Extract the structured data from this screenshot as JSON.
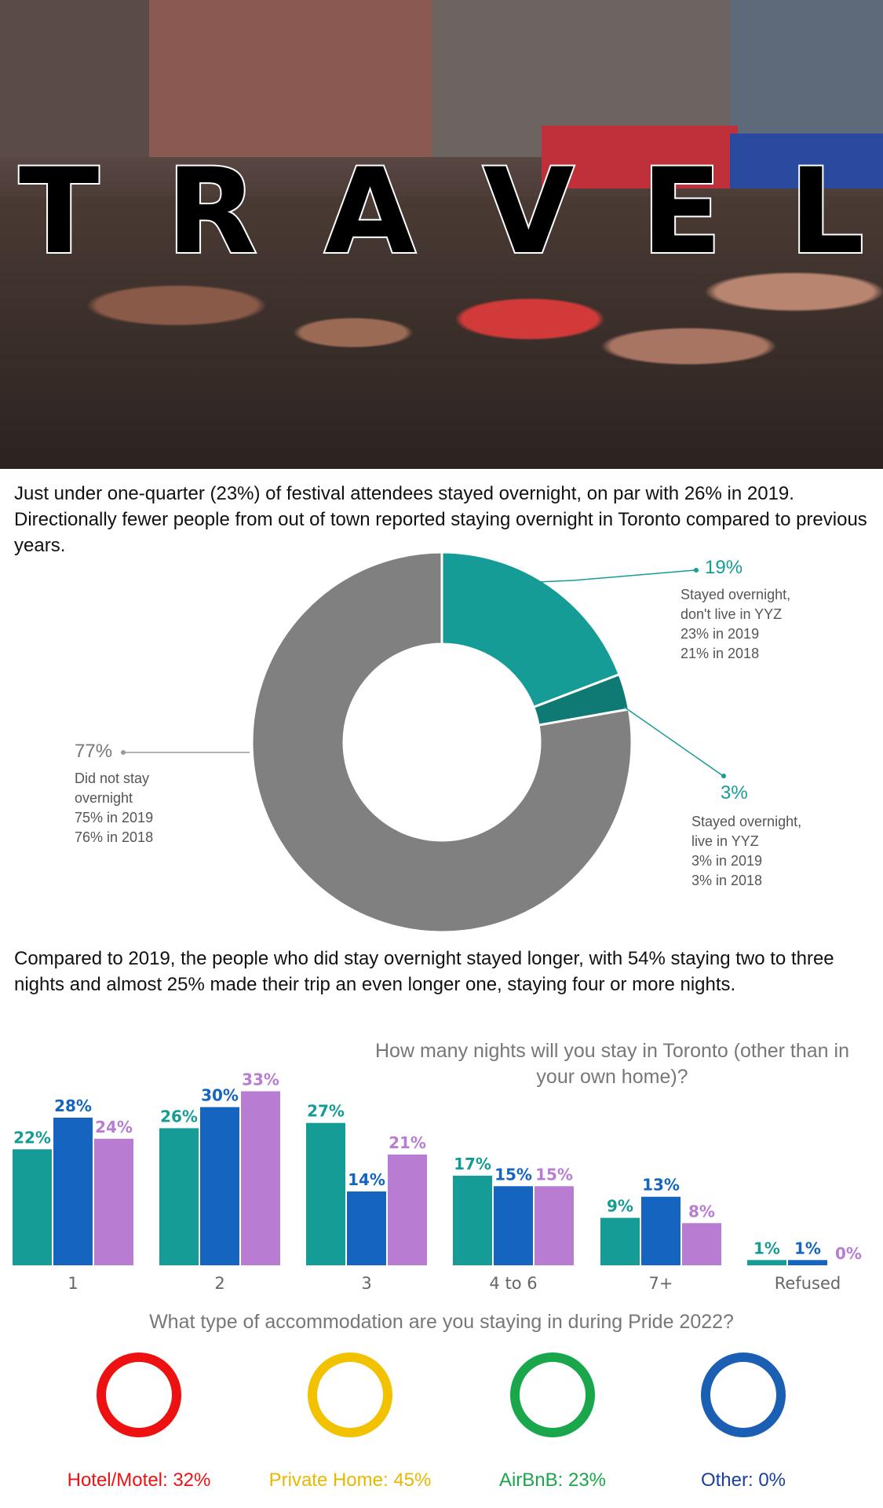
{
  "hero": {
    "title": "TRAVEL",
    "letters": [
      "T",
      "R",
      "A",
      "V",
      "E",
      "L"
    ]
  },
  "intro_text": "Just under one-quarter (23%) of festival attendees stayed overnight, on par with 26% in 2019. Directionally fewer people from out of town reported staying overnight in Toronto compared to previous years.",
  "colors": {
    "teal": "#169c96",
    "dark_teal": "#0f7a74",
    "gray": "#808080",
    "blue": "#1565c0",
    "purple": "#b87dd3",
    "red": "#ee1111",
    "yellow": "#f2c200",
    "green": "#1aa64a",
    "navy_blue": "#1a5fb4"
  },
  "donut": {
    "segments": [
      {
        "pct": "19%",
        "value": 19,
        "lines": [
          "Stayed overnight,",
          "don't live in YYZ",
          "23% in 2019",
          "21% in 2018"
        ],
        "color": "#169c96"
      },
      {
        "pct": "3%",
        "value": 3,
        "lines": [
          "Stayed overnight,",
          "live in YYZ",
          "3% in 2019",
          "3% in 2018"
        ],
        "color": "#0f7a74"
      },
      {
        "pct": "77%",
        "value": 77,
        "lines": [
          "Did not stay",
          "overnight",
          "75% in 2019",
          "76% in 2018"
        ],
        "color": "#808080"
      }
    ]
  },
  "intro_text2": "Compared to 2019, the people who did stay overnight stayed longer, with 54% staying two to three nights and almost 25% made their trip an even longer one, staying four or more nights.",
  "chart_data": {
    "type": "bar",
    "title": "How many nights will you stay in Toronto (other than in your own home)?",
    "categories": [
      "1",
      "2",
      "3",
      "4 to 6",
      "7+",
      "Refused"
    ],
    "series": [
      {
        "values": [
          22,
          26,
          27,
          17,
          9,
          1
        ],
        "labels": [
          "22%",
          "26%",
          "27%",
          "17%",
          "9%",
          "1%"
        ],
        "color": "#169c96"
      },
      {
        "values": [
          28,
          30,
          14,
          15,
          13,
          1
        ],
        "labels": [
          "28%",
          "30%",
          "14%",
          "15%",
          "13%",
          "1%"
        ],
        "color": "#1565c0"
      },
      {
        "values": [
          24,
          33,
          21,
          15,
          8,
          0
        ],
        "labels": [
          "24%",
          "33%",
          "21%",
          "15%",
          "8%",
          "0%"
        ],
        "color": "#b87dd3"
      }
    ],
    "ylim": [
      0,
      35
    ],
    "grid": false,
    "legend": "none"
  },
  "accommodation": {
    "question": "What type of accommodation are you staying in during Pride 2022?",
    "items": [
      {
        "label": "Hotel/Motel: 32%",
        "color": "#ee1111"
      },
      {
        "label": "Private Home: 45%",
        "color": "#f2c200"
      },
      {
        "label": "AirBnB: 23%",
        "color": "#1aa64a"
      },
      {
        "label": "Other: 0%",
        "color": "#1a5fb4"
      }
    ]
  }
}
